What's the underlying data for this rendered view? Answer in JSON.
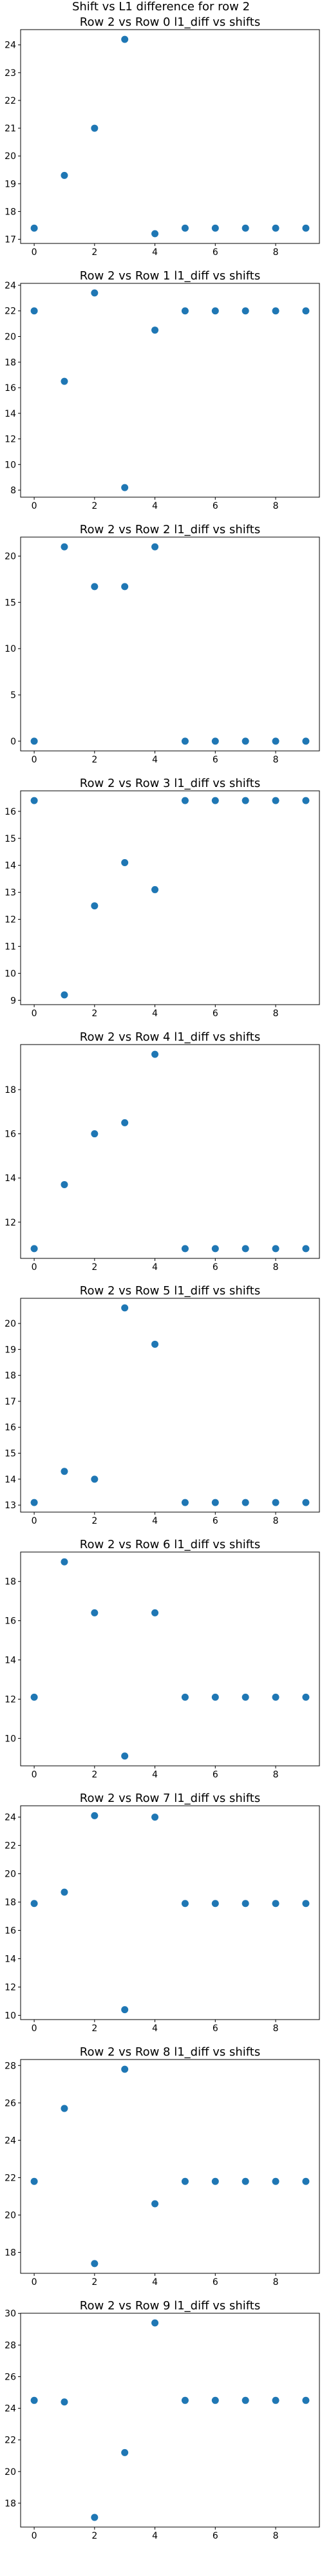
{
  "figure": {
    "suptitle": "Shift vs L1 difference for row 2"
  },
  "chart_data": [
    {
      "type": "scatter",
      "title": "Row 2 vs Row 0 l1_diff vs shifts",
      "xlabel": "",
      "ylabel": "",
      "x": [
        0,
        1,
        2,
        3,
        4,
        5,
        6,
        7,
        8,
        9
      ],
      "y": [
        17.4,
        19.3,
        21.0,
        24.2,
        17.2,
        17.4,
        17.4,
        17.4,
        17.4,
        17.4
      ],
      "xlim": [
        -0.45,
        9.45
      ],
      "ylim": [
        16.85,
        24.55
      ],
      "xticks": [
        0,
        2,
        4,
        6,
        8
      ],
      "yticks": [
        17,
        18,
        19,
        20,
        21,
        22,
        23,
        24
      ],
      "color": "#1f77b4"
    },
    {
      "type": "scatter",
      "title": "Row 2 vs Row 1 l1_diff vs shifts",
      "xlabel": "",
      "ylabel": "",
      "x": [
        0,
        1,
        2,
        3,
        4,
        5,
        6,
        7,
        8,
        9
      ],
      "y": [
        22.0,
        16.5,
        23.4,
        8.2,
        20.5,
        22.0,
        22.0,
        22.0,
        22.0,
        22.0
      ],
      "xlim": [
        -0.45,
        9.45
      ],
      "ylim": [
        7.45,
        24.15
      ],
      "xticks": [
        0,
        2,
        4,
        6,
        8
      ],
      "yticks": [
        8,
        10,
        12,
        14,
        16,
        18,
        20,
        22,
        24
      ],
      "color": "#1f77b4"
    },
    {
      "type": "scatter",
      "title": "Row 2 vs Row 2 l1_diff vs shifts",
      "xlabel": "",
      "ylabel": "",
      "x": [
        0,
        1,
        2,
        3,
        4,
        5,
        6,
        7,
        8,
        9
      ],
      "y": [
        0.0,
        21.0,
        16.7,
        16.7,
        21.0,
        0.0,
        0.0,
        0.0,
        0.0,
        0.0
      ],
      "xlim": [
        -0.45,
        9.45
      ],
      "ylim": [
        -1.05,
        22.05
      ],
      "xticks": [
        0,
        2,
        4,
        6,
        8
      ],
      "yticks": [
        0,
        5,
        10,
        15,
        20
      ],
      "color": "#1f77b4"
    },
    {
      "type": "scatter",
      "title": "Row 2 vs Row 3 l1_diff vs shifts",
      "xlabel": "",
      "ylabel": "",
      "x": [
        0,
        1,
        2,
        3,
        4,
        5,
        6,
        7,
        8,
        9
      ],
      "y": [
        16.4,
        9.2,
        12.5,
        14.1,
        13.1,
        16.4,
        16.4,
        16.4,
        16.4,
        16.4
      ],
      "xlim": [
        -0.45,
        9.45
      ],
      "ylim": [
        8.84,
        16.76
      ],
      "xticks": [
        0,
        2,
        4,
        6,
        8
      ],
      "yticks": [
        9,
        10,
        11,
        12,
        13,
        14,
        15,
        16
      ],
      "color": "#1f77b4"
    },
    {
      "type": "scatter",
      "title": "Row 2 vs Row 4 l1_diff vs shifts",
      "xlabel": "",
      "ylabel": "",
      "x": [
        0,
        1,
        2,
        3,
        4,
        5,
        6,
        7,
        8,
        9
      ],
      "y": [
        10.8,
        13.7,
        16.0,
        16.5,
        19.6,
        10.8,
        10.8,
        10.8,
        10.8,
        10.8
      ],
      "xlim": [
        -0.45,
        9.45
      ],
      "ylim": [
        10.36,
        20.04
      ],
      "xticks": [
        0,
        2,
        4,
        6,
        8
      ],
      "yticks": [
        12,
        14,
        16,
        18
      ],
      "color": "#1f77b4"
    },
    {
      "type": "scatter",
      "title": "Row 2 vs Row 5 l1_diff vs shifts",
      "xlabel": "",
      "ylabel": "",
      "x": [
        0,
        1,
        2,
        3,
        4,
        5,
        6,
        7,
        8,
        9
      ],
      "y": [
        13.1,
        14.3,
        14.0,
        20.6,
        19.2,
        13.1,
        13.1,
        13.1,
        13.1,
        13.1
      ],
      "xlim": [
        -0.45,
        9.45
      ],
      "ylim": [
        12.73,
        20.97
      ],
      "xticks": [
        0,
        2,
        4,
        6,
        8
      ],
      "yticks": [
        13,
        14,
        15,
        16,
        17,
        18,
        19,
        20
      ],
      "color": "#1f77b4"
    },
    {
      "type": "scatter",
      "title": "Row 2 vs Row 6 l1_diff vs shifts",
      "xlabel": "",
      "ylabel": "",
      "x": [
        0,
        1,
        2,
        3,
        4,
        5,
        6,
        7,
        8,
        9
      ],
      "y": [
        12.1,
        19.0,
        16.4,
        9.1,
        16.4,
        12.1,
        12.1,
        12.1,
        12.1,
        12.1
      ],
      "xlim": [
        -0.45,
        9.45
      ],
      "ylim": [
        8.6,
        19.5
      ],
      "xticks": [
        0,
        2,
        4,
        6,
        8
      ],
      "yticks": [
        10,
        12,
        14,
        16,
        18
      ],
      "color": "#1f77b4"
    },
    {
      "type": "scatter",
      "title": "Row 2 vs Row 7 l1_diff vs shifts",
      "xlabel": "",
      "ylabel": "",
      "x": [
        0,
        1,
        2,
        3,
        4,
        5,
        6,
        7,
        8,
        9
      ],
      "y": [
        17.9,
        18.7,
        24.1,
        10.4,
        24.0,
        17.9,
        17.9,
        17.9,
        17.9,
        17.9
      ],
      "xlim": [
        -0.45,
        9.45
      ],
      "ylim": [
        9.7,
        24.8
      ],
      "xticks": [
        0,
        2,
        4,
        6,
        8
      ],
      "yticks": [
        10,
        12,
        14,
        16,
        18,
        20,
        22,
        24
      ],
      "color": "#1f77b4"
    },
    {
      "type": "scatter",
      "title": "Row 2 vs Row 8 l1_diff vs shifts",
      "xlabel": "",
      "ylabel": "",
      "x": [
        0,
        1,
        2,
        3,
        4,
        5,
        6,
        7,
        8,
        9
      ],
      "y": [
        21.8,
        25.7,
        17.4,
        27.8,
        20.6,
        21.8,
        21.8,
        21.8,
        21.8,
        21.8
      ],
      "xlim": [
        -0.45,
        9.45
      ],
      "ylim": [
        16.88,
        28.32
      ],
      "xticks": [
        0,
        2,
        4,
        6,
        8
      ],
      "yticks": [
        18,
        20,
        22,
        24,
        26,
        28
      ],
      "color": "#1f77b4"
    },
    {
      "type": "scatter",
      "title": "Row 2 vs Row 9 l1_diff vs shifts",
      "xlabel": "",
      "ylabel": "",
      "x": [
        0,
        1,
        2,
        3,
        4,
        5,
        6,
        7,
        8,
        9
      ],
      "y": [
        24.5,
        24.4,
        17.1,
        21.2,
        29.4,
        24.5,
        24.5,
        24.5,
        24.5,
        24.5
      ],
      "xlim": [
        -0.45,
        9.45
      ],
      "ylim": [
        16.49,
        30.01
      ],
      "xticks": [
        0,
        2,
        4,
        6,
        8
      ],
      "yticks": [
        18,
        20,
        22,
        24,
        26,
        28,
        30
      ],
      "color": "#1f77b4"
    }
  ]
}
